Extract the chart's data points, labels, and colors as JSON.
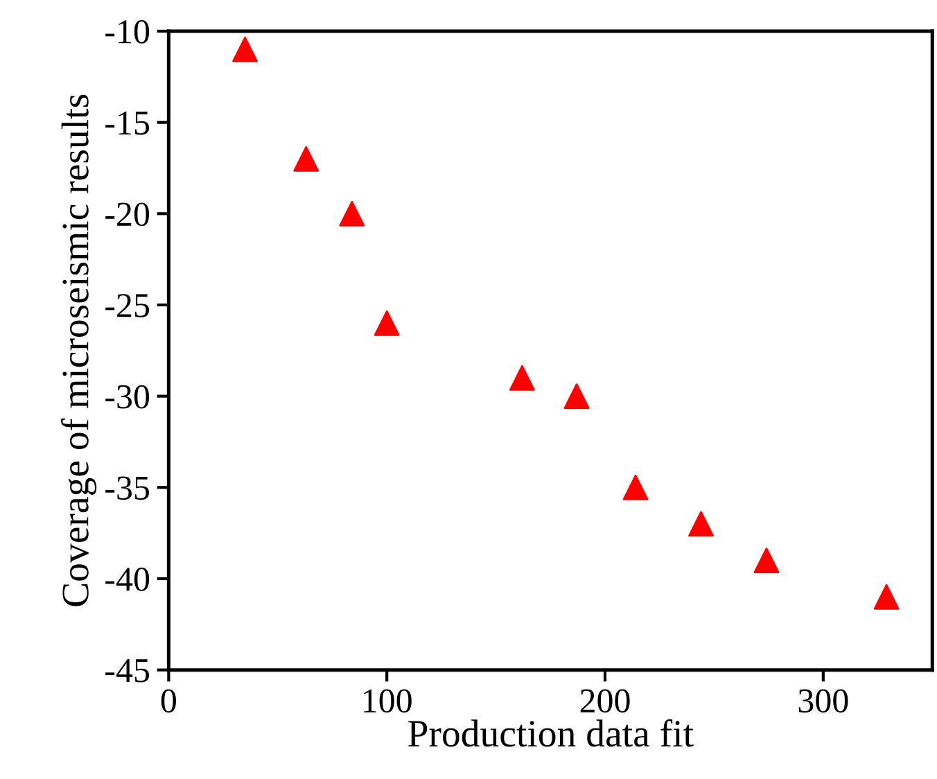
{
  "chart_data": {
    "type": "scatter",
    "xlabel": "Production data fit",
    "ylabel": "Coverage of microseismic results",
    "x": [
      35,
      63,
      84,
      100,
      162,
      187,
      214,
      244,
      274,
      329
    ],
    "series": [
      {
        "color": "#ff0000",
        "values": [
          -11,
          -17,
          -20,
          -26,
          -29,
          -30,
          -35,
          -37,
          -39,
          -41
        ]
      }
    ],
    "marker": "triangle",
    "xlim": [
      0,
      350
    ],
    "xticks": [
      0,
      100,
      200,
      300
    ],
    "ylim": [
      -45,
      -10
    ],
    "yticks": [
      -45,
      -40,
      -35,
      -30,
      -25,
      -20,
      -15,
      -10
    ],
    "grid": false,
    "legend": false
  }
}
